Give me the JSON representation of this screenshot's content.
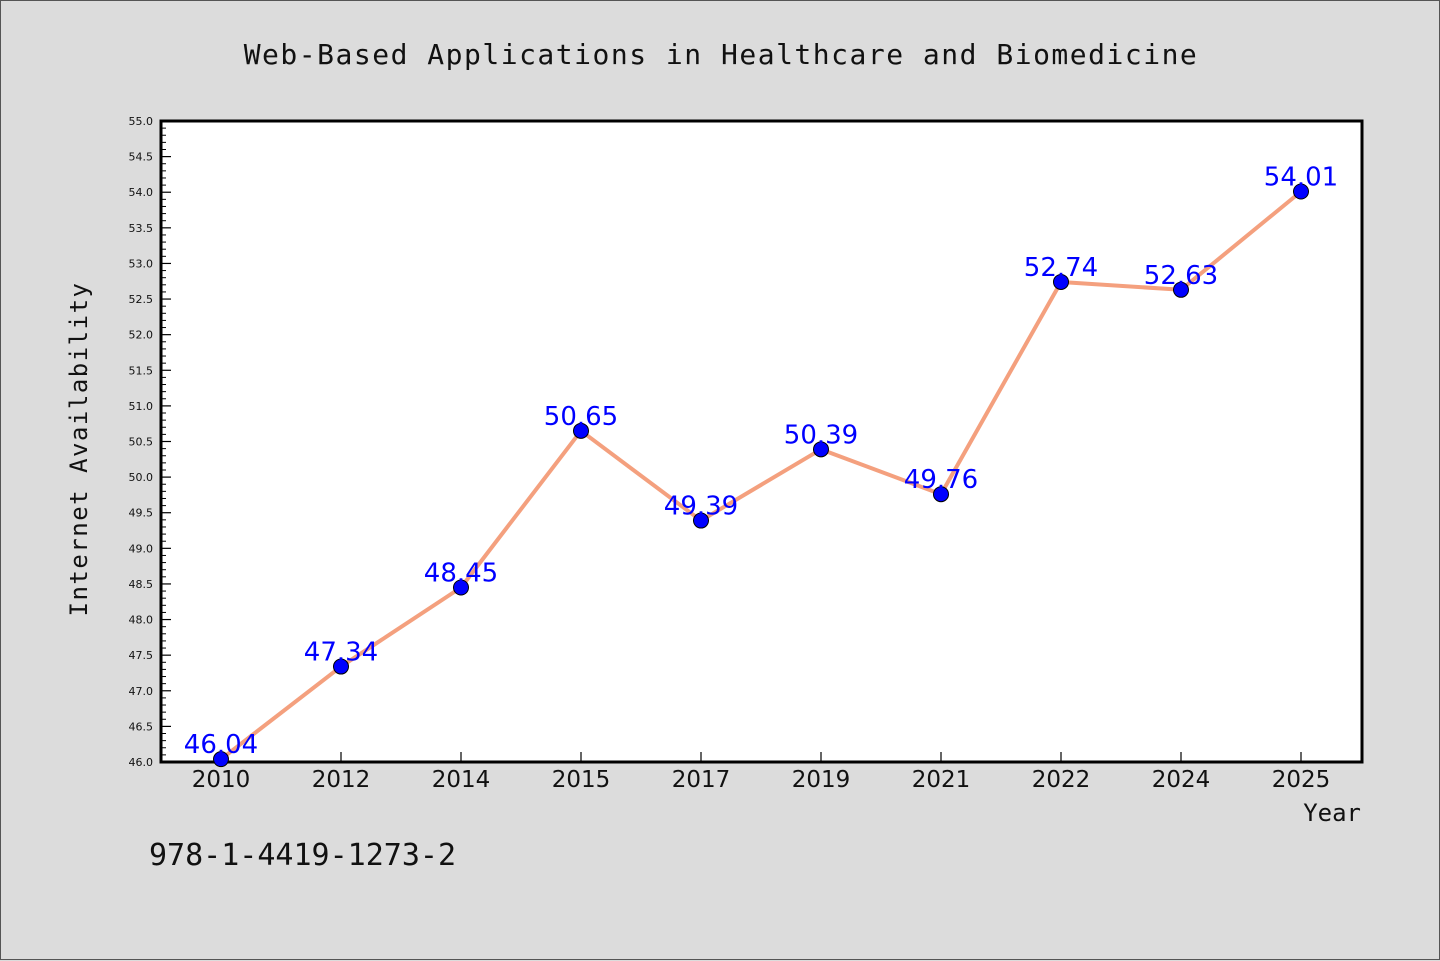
{
  "chart_data": {
    "type": "line",
    "title": "Web-Based Applications in Healthcare and Biomedicine",
    "xlabel": "Year",
    "ylabel": "Internet Availability",
    "categories": [
      "2010",
      "2012",
      "2014",
      "2015",
      "2017",
      "2019",
      "2021",
      "2022",
      "2024",
      "2025"
    ],
    "values": [
      46.04,
      47.34,
      48.45,
      50.65,
      49.39,
      50.39,
      49.76,
      52.74,
      52.63,
      54.01
    ],
    "data_labels": [
      "46.04",
      "47.34",
      "48.45",
      "50.65",
      "49.39",
      "50.39",
      "49.76",
      "52.74",
      "52.63",
      "54.01"
    ],
    "ylim": [
      46.0,
      55.0
    ],
    "y_ticks": [
      "46.0",
      "46.5",
      "47.0",
      "47.5",
      "48.0",
      "48.5",
      "49.0",
      "49.5",
      "50.0",
      "50.5",
      "51.0",
      "51.5",
      "52.0",
      "52.5",
      "53.0",
      "53.5",
      "54.0",
      "54.5",
      "55.0"
    ],
    "grid": false,
    "line_color": "#f4a07e",
    "marker_color": "#0000ff",
    "label_color": "#0000ff"
  },
  "footer": {
    "isbn": "978-1-4419-1273-2"
  }
}
